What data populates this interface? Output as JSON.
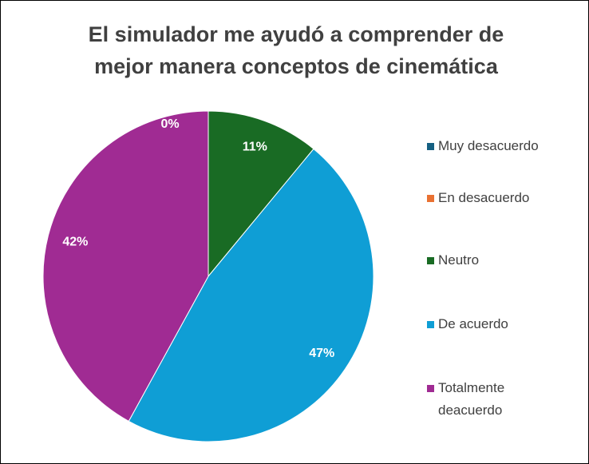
{
  "chart_data": {
    "type": "pie",
    "title": "El simulador me ayudó a comprender de mejor manera conceptos de cinemática",
    "categories": [
      "Muy desacuerdo",
      "En desacuerdo",
      "Neutro",
      "De acuerdo",
      "Totalmente deacuerdo"
    ],
    "values": [
      0,
      0,
      11,
      47,
      42
    ],
    "value_labels": [
      "0%",
      null,
      "11%",
      "47%",
      "42%"
    ],
    "colors": [
      "#156082",
      "#e97132",
      "#196b24",
      "#0f9ed5",
      "#a02b93"
    ],
    "legend": "right"
  }
}
